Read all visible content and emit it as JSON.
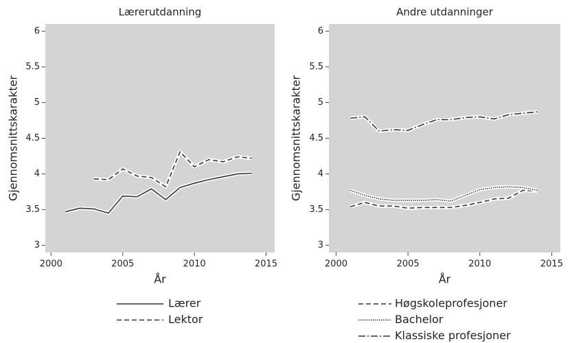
{
  "chart_data": [
    {
      "type": "line",
      "title": "Lærerutdanning",
      "xlabel": "År",
      "ylabel": "Gjennomsnittskarakter",
      "x": [
        2001,
        2002,
        2003,
        2004,
        2005,
        2006,
        2007,
        2008,
        2009,
        2010,
        2011,
        2012,
        2013,
        2014
      ],
      "series": [
        {
          "name": "Lærer",
          "color": "#333333",
          "style": "solid",
          "values": [
            3.47,
            3.52,
            3.51,
            3.45,
            3.69,
            3.68,
            3.79,
            3.64,
            3.81,
            3.87,
            3.92,
            3.96,
            4.0,
            4.01
          ]
        },
        {
          "name": "Lektor",
          "color": "#333333",
          "style": "dashed",
          "values": [
            null,
            null,
            3.93,
            3.92,
            4.07,
            3.97,
            3.95,
            3.82,
            4.31,
            4.1,
            4.2,
            4.17,
            4.24,
            4.22
          ]
        }
      ],
      "xlim": [
        1999.6,
        2015.6
      ],
      "xticks": [
        2000,
        2005,
        2010,
        2015
      ],
      "ylim": [
        2.9,
        6.1
      ],
      "yticks": [
        3,
        3.5,
        4,
        4.5,
        5,
        5.5,
        6
      ],
      "grid": false,
      "legend": "bottom"
    },
    {
      "type": "line",
      "title": "Andre utdanninger",
      "xlabel": "År",
      "ylabel": "Gjennomsnittskarakter",
      "x": [
        2001,
        2002,
        2003,
        2004,
        2005,
        2006,
        2007,
        2008,
        2009,
        2010,
        2011,
        2012,
        2013,
        2014
      ],
      "series": [
        {
          "name": "Høgskoleprofesjoner",
          "color": "#333333",
          "style": "dashed",
          "values": [
            3.54,
            3.6,
            3.55,
            3.55,
            3.52,
            3.53,
            3.53,
            3.53,
            3.56,
            3.6,
            3.65,
            3.66,
            3.77,
            3.76
          ]
        },
        {
          "name": "Bachelor",
          "color": "#333333",
          "style": "dotted",
          "values": [
            3.77,
            3.7,
            3.65,
            3.63,
            3.63,
            3.63,
            3.64,
            3.62,
            3.7,
            3.78,
            3.81,
            3.82,
            3.81,
            3.77
          ]
        },
        {
          "name": "Klassiske profesjoner",
          "color": "#333333",
          "style": "dashdot",
          "values": [
            4.78,
            4.8,
            4.6,
            4.62,
            4.61,
            4.69,
            4.76,
            4.76,
            4.79,
            4.8,
            4.77,
            4.83,
            4.85,
            4.87
          ]
        }
      ],
      "xlim": [
        1999.5,
        2015.6
      ],
      "xticks": [
        2000,
        2005,
        2010,
        2015
      ],
      "ylim": [
        2.9,
        6.1
      ],
      "yticks": [
        3,
        3.5,
        4,
        4.5,
        5,
        5.5,
        6
      ],
      "grid": false,
      "legend": "bottom"
    }
  ]
}
